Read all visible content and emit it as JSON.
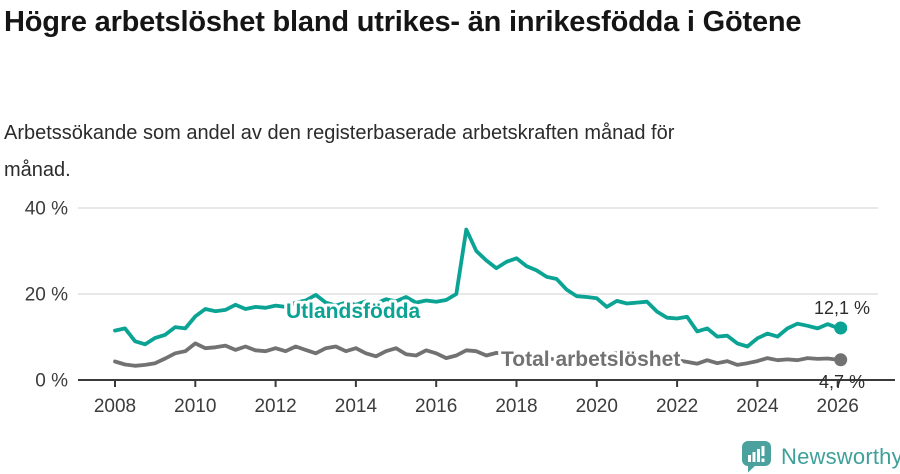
{
  "chart_data": {
    "type": "line",
    "title": "Högre arbetslöshet bland utrikes- än inrikesfödda i Götene",
    "subtitle": "Arbetssökande som andel av den registerbaserade arbetskraften månad för månad.",
    "unit": "%",
    "grid": "horizontal",
    "legend_position": "inline-labels",
    "ylim": [
      0,
      40
    ],
    "x_range": [
      2008,
      2026
    ],
    "x_ticks": [
      2008,
      2010,
      2012,
      2014,
      2016,
      2018,
      2020,
      2022,
      2024,
      2026
    ],
    "y_ticks": [
      {
        "value": 0,
        "label": "0 %"
      },
      {
        "value": 20,
        "label": "20 %"
      },
      {
        "value": 40,
        "label": "40 %"
      }
    ],
    "x": [
      2008,
      2008.25,
      2008.5,
      2008.75,
      2009,
      2009.25,
      2009.5,
      2009.75,
      2010,
      2010.25,
      2010.5,
      2010.75,
      2011,
      2011.25,
      2011.5,
      2011.75,
      2012,
      2012.25,
      2012.5,
      2012.75,
      2013,
      2013.25,
      2013.5,
      2013.75,
      2014,
      2014.25,
      2014.5,
      2014.75,
      2015,
      2015.25,
      2015.5,
      2015.75,
      2016,
      2016.25,
      2016.5,
      2016.75,
      2017,
      2017.25,
      2017.5,
      2017.75,
      2018,
      2018.25,
      2018.5,
      2018.75,
      2019,
      2019.25,
      2019.5,
      2019.75,
      2020,
      2020.25,
      2020.5,
      2020.75,
      2021,
      2021.25,
      2021.5,
      2021.75,
      2022,
      2022.25,
      2022.5,
      2022.75,
      2023,
      2023.25,
      2023.5,
      2023.75,
      2024,
      2024.25,
      2024.5,
      2024.75,
      2025,
      2025.25,
      2025.5,
      2025.75,
      2026
    ],
    "series": [
      {
        "name": "Utlandsfödda",
        "color": "#0ba394",
        "end_value": 12.1,
        "end_label": "12,1 %",
        "values": [
          11.5,
          12.0,
          9.0,
          8.3,
          9.8,
          10.5,
          12.3,
          12.0,
          14.8,
          16.5,
          16.0,
          16.3,
          17.5,
          16.5,
          17.0,
          16.8,
          17.3,
          17.0,
          18.0,
          18.5,
          19.8,
          18.0,
          17.3,
          18.0,
          17.5,
          18.3,
          17.8,
          18.8,
          18.3,
          19.3,
          18.0,
          18.5,
          18.2,
          18.6,
          20.0,
          35.0,
          30.0,
          27.8,
          26.0,
          27.5,
          28.3,
          26.5,
          25.5,
          24.0,
          23.5,
          21.0,
          19.5,
          19.3,
          19.0,
          17.0,
          18.4,
          17.8,
          18.0,
          18.2,
          15.9,
          14.5,
          14.3,
          14.7,
          11.3,
          12.0,
          10.1,
          10.3,
          8.5,
          7.8,
          9.7,
          10.8,
          10.1,
          12.0,
          13.1,
          12.6,
          12.0,
          13.0,
          12.1
        ]
      },
      {
        "name": "Total arbetslöshet",
        "color": "#727272",
        "end_value": 4.7,
        "end_label": "4,7 %",
        "values": [
          4.3,
          3.6,
          3.3,
          3.5,
          3.9,
          5.0,
          6.2,
          6.7,
          8.5,
          7.4,
          7.6,
          8.0,
          7.0,
          7.8,
          6.9,
          6.7,
          7.4,
          6.7,
          7.8,
          7.0,
          6.2,
          7.4,
          7.8,
          6.7,
          7.4,
          6.2,
          5.5,
          6.7,
          7.4,
          6.0,
          5.7,
          6.9,
          6.2,
          5.1,
          5.7,
          6.9,
          6.7,
          5.7,
          6.3,
          6.0,
          5.8,
          5.5,
          5.2,
          5.0,
          4.8,
          4.6,
          4.8,
          5.0,
          5.2,
          6.0,
          6.2,
          6.0,
          5.8,
          5.5,
          5.2,
          5.0,
          4.6,
          4.2,
          3.8,
          4.6,
          3.9,
          4.4,
          3.5,
          3.9,
          4.4,
          5.1,
          4.6,
          4.8,
          4.6,
          5.1,
          4.9,
          5.0,
          4.7
        ]
      }
    ]
  },
  "colors": {
    "grid": "#d9d9d9",
    "axis": "#3a3a3a",
    "axis_text": "#3c3c3c",
    "end_label_text": "#2d2d2d",
    "brand_teal": "#3fa09a"
  },
  "footer": {
    "brand": "Newsworthy",
    "logo_icon": "bar-chart-speech-bubble-icon"
  }
}
